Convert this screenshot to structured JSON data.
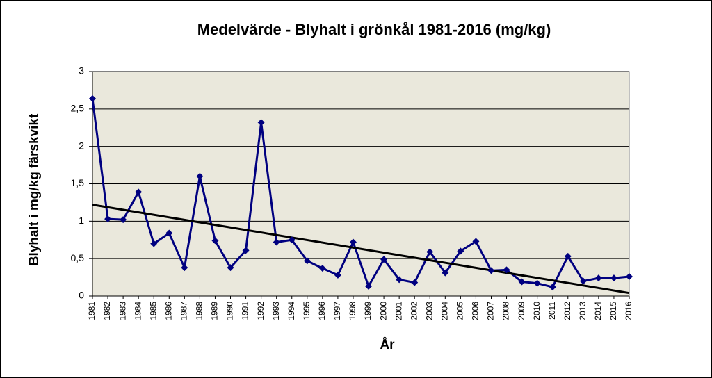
{
  "chart_data": {
    "type": "line",
    "title": "Medelvärde - Blyhalt i grönkål 1981-2016 (mg/kg)",
    "y_label": "Blyhalt i mg/kg färskvikt",
    "x_label": "År",
    "categories": [
      "1981",
      "1982",
      "1983",
      "1984",
      "1985",
      "1986",
      "1987",
      "1988",
      "1989",
      "1990",
      "1991",
      "1992",
      "1993",
      "1994",
      "1995",
      "1996",
      "1997",
      "1998",
      "1999",
      "2000",
      "2001",
      "2002",
      "2003",
      "2004",
      "2005",
      "2006",
      "2007",
      "2008",
      "2009",
      "2010",
      "2011",
      "2012",
      "2013",
      "2014",
      "2015",
      "2016"
    ],
    "values": [
      2.64,
      1.03,
      1.02,
      1.39,
      0.7,
      0.84,
      0.38,
      1.6,
      0.74,
      0.38,
      0.61,
      2.32,
      0.72,
      0.75,
      0.47,
      0.37,
      0.28,
      0.72,
      0.13,
      0.49,
      0.22,
      0.18,
      0.59,
      0.31,
      0.6,
      0.73,
      0.34,
      0.35,
      0.19,
      0.17,
      0.12,
      0.53,
      0.2,
      0.24,
      0.24,
      0.26
    ],
    "color": "#000080",
    "trend": [
      1.22,
      0.04
    ],
    "trend_color": "#000000",
    "ylim": [
      0,
      3
    ],
    "yticks": [
      0,
      {
        "value": 0.5,
        "label": "0,5"
      },
      1,
      {
        "value": 1.5,
        "label": "1,5"
      },
      2,
      {
        "value": 2.5,
        "label": "2,5"
      },
      3
    ],
    "grid": true
  }
}
